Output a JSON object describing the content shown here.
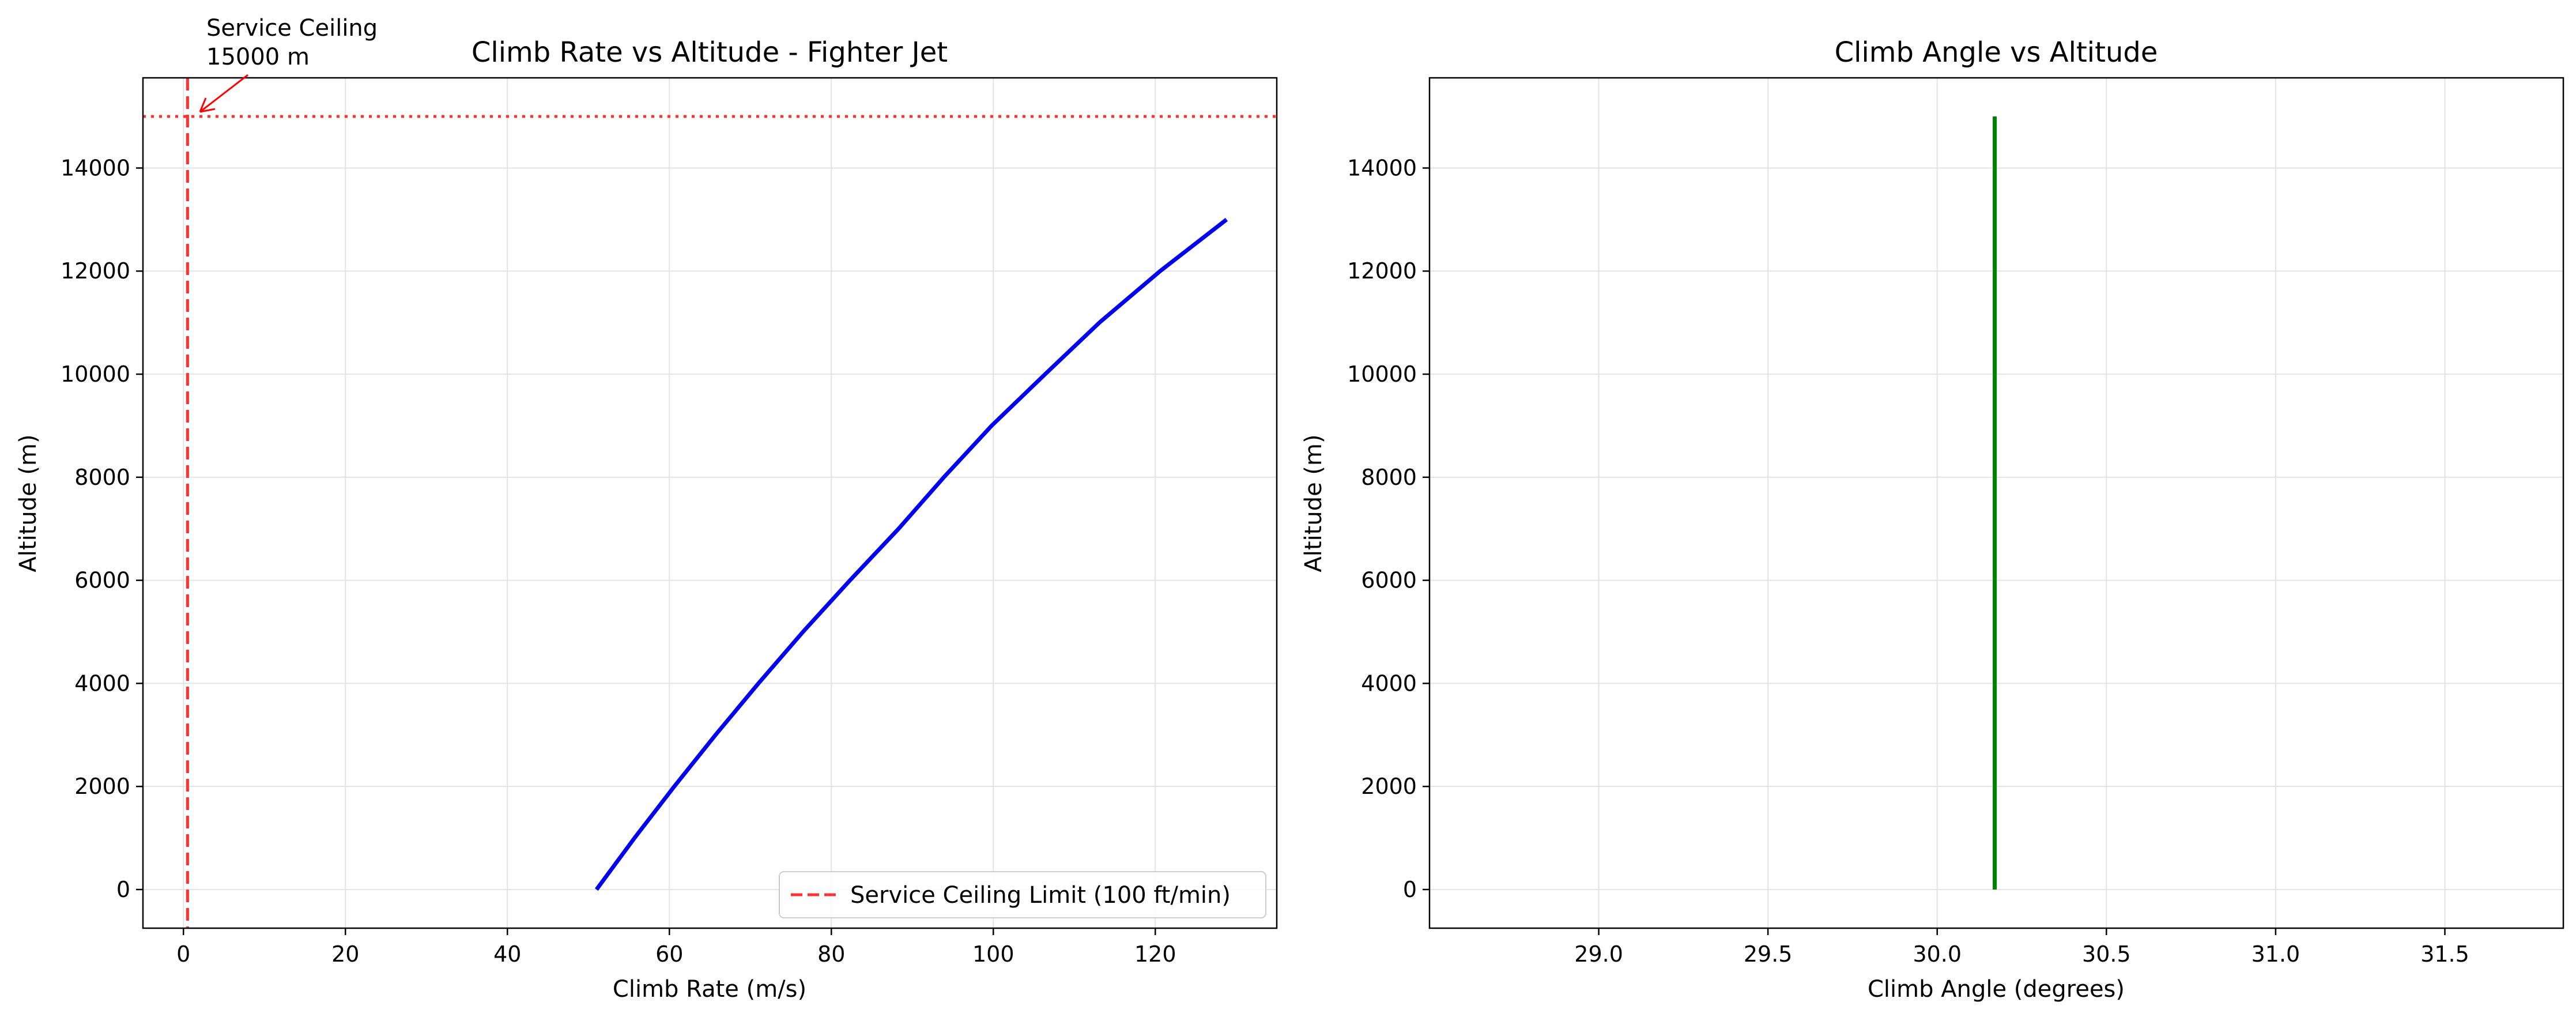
{
  "chart_data": [
    {
      "type": "line",
      "title": "Climb Rate vs Altitude - Fighter Jet",
      "xlabel": "Climb Rate (m/s)",
      "ylabel": "Altitude (m)",
      "xlim": [
        -5,
        135
      ],
      "ylim": [
        -750,
        15750
      ],
      "xticks": [
        0,
        20,
        40,
        60,
        80,
        100,
        120
      ],
      "yticks": [
        0,
        2000,
        4000,
        6000,
        8000,
        10000,
        12000,
        14000
      ],
      "grid": true,
      "legend_position": "lower-right",
      "series": [
        {
          "color": "#0000ee",
          "style": "solid",
          "x": [
            51.0,
            55.7,
            60.6,
            65.7,
            71.0,
            76.5,
            82.3,
            88.3,
            93.9,
            99.8,
            106.4,
            113.1,
            120.6,
            128.8
          ],
          "y": [
            0,
            1000,
            2000,
            3000,
            4000,
            5000,
            6000,
            7000,
            8000,
            9000,
            10000,
            11000,
            12000,
            13000
          ]
        }
      ],
      "reference_lines": [
        {
          "orientation": "vertical",
          "value": 0.51,
          "color": "#ff3333",
          "style": "dashed",
          "label": "Service Ceiling Limit (100 ft/min)"
        },
        {
          "orientation": "horizontal",
          "value": 15000,
          "color": "#ff3333",
          "style": "dotted"
        }
      ],
      "annotation": {
        "text_lines": [
          "Service Ceiling",
          "15000 m"
        ],
        "point": [
          0.5,
          15000
        ],
        "color": "#ff0000"
      }
    },
    {
      "type": "line",
      "title": "Climb Angle vs Altitude",
      "xlabel": "Climb Angle (degrees)",
      "ylabel": "Altitude (m)",
      "xlim": [
        28.5,
        31.85
      ],
      "ylim": [
        -750,
        15750
      ],
      "xticks": [
        29.0,
        29.5,
        30.0,
        30.5,
        31.0,
        31.5
      ],
      "xtick_labels": [
        "29.0",
        "29.5",
        "30.0",
        "30.5",
        "31.0",
        "31.5"
      ],
      "yticks": [
        0,
        2000,
        4000,
        6000,
        8000,
        10000,
        12000,
        14000
      ],
      "grid": true,
      "series": [
        {
          "color": "#008000",
          "style": "solid",
          "x": [
            30.17,
            30.17
          ],
          "y": [
            0,
            15000
          ]
        }
      ]
    }
  ]
}
